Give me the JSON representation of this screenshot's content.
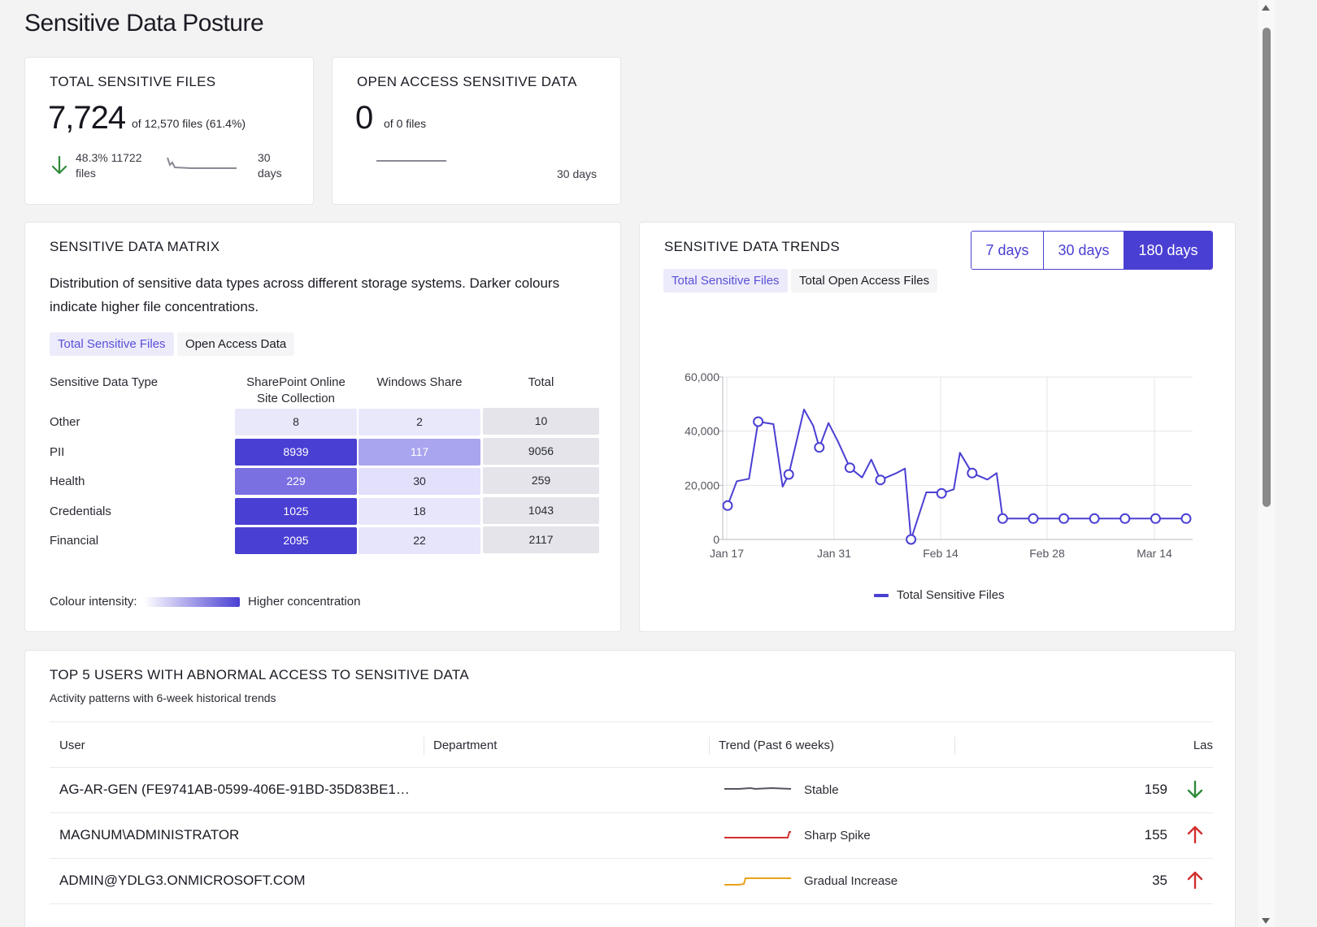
{
  "page": {
    "title": "Sensitive Data Posture"
  },
  "kpi_total": {
    "title": "TOTAL SENSITIVE FILES",
    "value": "7,724",
    "sub": "of 12,570 files (61.4%)",
    "delta_line1": "48.3% 11722",
    "delta_line2": "files",
    "days_line1": "30",
    "days_line2": "days",
    "trend_direction": "down",
    "trend_color": "#2e8b3a"
  },
  "kpi_open": {
    "title": "OPEN ACCESS SENSITIVE DATA",
    "value": "0",
    "sub": "of 0 files",
    "days": "30 days"
  },
  "matrix": {
    "title": "SENSITIVE DATA MATRIX",
    "description": "Distribution of sensitive data types across different storage systems. Darker colours indicate higher file concentrations.",
    "tabs": [
      "Total Sensitive Files",
      "Open Access Data"
    ],
    "active_tab": 0,
    "headers": [
      "Sensitive Data Type",
      "SharePoint Online Site Collection",
      "Windows Share",
      "Total"
    ],
    "rows": [
      {
        "type": "Other",
        "sharepoint": "8",
        "windows": "2",
        "total": "10",
        "sp_color": "#e9e8fb",
        "ws_color": "#e9e8fb",
        "sp_text": "#2a2a33",
        "ws_text": "#2a2a33"
      },
      {
        "type": "PII",
        "sharepoint": "8939",
        "windows": "117",
        "total": "9056",
        "sp_color": "#4a3fd3",
        "ws_color": "#aaa5ef",
        "sp_text": "#ffffff",
        "ws_text": "#ffffff"
      },
      {
        "type": "Health",
        "sharepoint": "229",
        "windows": "30",
        "total": "259",
        "sp_color": "#7a70e2",
        "ws_color": "#e2e0fa",
        "sp_text": "#ffffff",
        "ws_text": "#2a2a33"
      },
      {
        "type": "Credentials",
        "sharepoint": "1025",
        "windows": "18",
        "total": "1043",
        "sp_color": "#4a3fd3",
        "ws_color": "#e7e6fb",
        "sp_text": "#ffffff",
        "ws_text": "#2a2a33"
      },
      {
        "type": "Financial",
        "sharepoint": "2095",
        "windows": "22",
        "total": "2117",
        "sp_color": "#4a3fd3",
        "ws_color": "#e6e5fb",
        "sp_text": "#ffffff",
        "ws_text": "#2a2a33"
      }
    ],
    "total_cell_color": "#e4e4ea",
    "legend_label": "Colour intensity:",
    "legend_high": "Higher concentration"
  },
  "trends": {
    "title": "SENSITIVE DATA TRENDS",
    "ranges": [
      "7 days",
      "30 days",
      "180 days"
    ],
    "active_range": 2,
    "tabs": [
      "Total Sensitive Files",
      "Total Open Access Files"
    ],
    "active_tab": 0,
    "legend": "Total Sensitive Files"
  },
  "chart_data": {
    "type": "line",
    "ylim": [
      0,
      60000
    ],
    "yticks": [
      "0",
      "20,000",
      "40,000",
      "60,000"
    ],
    "xticks": [
      "Jan 17",
      "Jan 31",
      "Feb 14",
      "Feb 28",
      "Mar 14"
    ],
    "series": [
      {
        "name": "Total Sensitive Files",
        "color": "#4a3fd3",
        "points": [
          {
            "x": "Jan 17",
            "y": 12500
          },
          {
            "x": "Jan 21",
            "y": 43500
          },
          {
            "x": "Jan 25",
            "y": 24000
          },
          {
            "x": "Jan 29",
            "y": 34000
          },
          {
            "x": "Feb 2",
            "y": 26500
          },
          {
            "x": "Feb 6",
            "y": 22000
          },
          {
            "x": "Feb 10",
            "y": 0
          },
          {
            "x": "Feb 14",
            "y": 17000
          },
          {
            "x": "Feb 18",
            "y": 24500
          },
          {
            "x": "Feb 22",
            "y": 7700
          },
          {
            "x": "Feb 26",
            "y": 7700
          },
          {
            "x": "Mar 1",
            "y": 7700
          },
          {
            "x": "Mar 5",
            "y": 7700
          },
          {
            "x": "Mar 9",
            "y": 7700
          },
          {
            "x": "Mar 13",
            "y": 7700
          },
          {
            "x": "Mar 17",
            "y": 7700
          }
        ]
      }
    ]
  },
  "users": {
    "title": "TOP 5 USERS WITH ABNORMAL ACCESS TO SENSITIVE DATA",
    "subtitle": "Activity patterns with 6-week historical trends",
    "columns": [
      "User",
      "Department",
      "Trend (Past 6 weeks)",
      "Las"
    ],
    "rows": [
      {
        "user": "AG-AR-GEN (FE9741AB-0599-406E-91BD-35D83BE1…",
        "trend_label": "Stable",
        "count": "159",
        "direction": "down",
        "trend_color": "#555560",
        "arrow_color": "#2e8b3a"
      },
      {
        "user": "MAGNUM\\ADMINISTRATOR",
        "trend_label": "Sharp Spike",
        "count": "155",
        "direction": "up",
        "trend_color": "#d22f2f",
        "arrow_color": "#d22f2f"
      },
      {
        "user": "ADMIN@YDLG3.ONMICROSOFT.COM",
        "trend_label": "Gradual Increase",
        "count": "35",
        "direction": "up",
        "trend_color": "#e8a21a",
        "arrow_color": "#d22f2f"
      }
    ]
  }
}
